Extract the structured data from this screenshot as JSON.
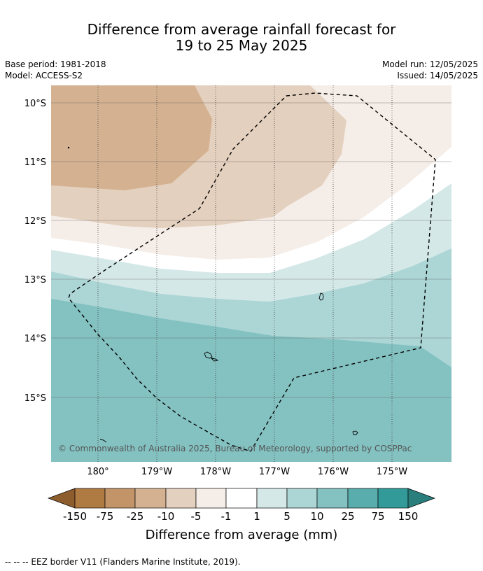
{
  "title": {
    "line1": "Difference from average rainfall forecast for",
    "line2": "19 to 25 May 2025"
  },
  "meta": {
    "base_period": "Base period: 1981-2018",
    "model": "Model: ACCESS-S2",
    "model_run": "Model run: 12/05/2025",
    "issued": "Issued: 14/05/2025"
  },
  "map": {
    "lat_labels": [
      "10°S",
      "11°S",
      "12°S",
      "13°S",
      "14°S",
      "15°S"
    ],
    "lon_labels": [
      "180°",
      "179°W",
      "178°W",
      "177°W",
      "176°W",
      "175°W"
    ],
    "copyright": "© Commonwealth of Australia 2025, Bureau of Meteorology, supported by COSPPac",
    "colors": {
      "m150": "#b07a43",
      "m75": "#c39468",
      "m25": "#d4b291",
      "m10": "#e4d0be",
      "m5": "#f5ede7",
      "neutral": "#ffffff",
      "p1": "#d5e8e8",
      "p5": "#acd5d5",
      "p10": "#84c1c1",
      "p25": "#5aadad",
      "p75": "#329b99"
    }
  },
  "legend": {
    "ticks": [
      "-150",
      "-75",
      "-25",
      "-10",
      "-5",
      "-1",
      "1",
      "5",
      "10",
      "25",
      "75",
      "150"
    ],
    "label": "Difference from average (mm)"
  },
  "footnote": "-- -- -- EEZ border V11 (Flanders Marine Institute, 2019)."
}
